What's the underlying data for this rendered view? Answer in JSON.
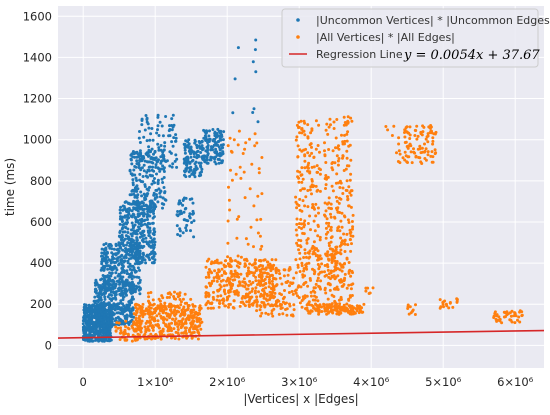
{
  "chart_data": {
    "type": "scatter",
    "title": "",
    "xlabel": "|Vertices| x |Edges|",
    "ylabel": "time (ms)",
    "xlim": [
      -350000,
      6400000
    ],
    "ylim": [
      -110,
      1650
    ],
    "x_ticks": [
      0,
      1000000,
      2000000,
      3000000,
      4000000,
      5000000,
      6000000
    ],
    "x_tick_labels": [
      "0",
      "1×10⁶",
      "2×10⁶",
      "3×10⁶",
      "4×10⁶",
      "5×10⁶",
      "6×10⁶"
    ],
    "y_ticks": [
      0,
      200,
      400,
      600,
      800,
      1000,
      1200,
      1400,
      1600
    ],
    "y_tick_labels": [
      "0",
      "200",
      "400",
      "600",
      "800",
      "1000",
      "1200",
      "1400",
      "1600"
    ],
    "grid": true,
    "legend_position": "top-right",
    "series": [
      {
        "name": "|Uncommon Vertices| * |Uncommon Edges|",
        "color": "#1f77b4",
        "clusters": [
          {
            "x": [
              0,
              400000
            ],
            "y": [
              20,
              200
            ],
            "n": 520
          },
          {
            "x": [
              150000,
              700000
            ],
            "y": [
              100,
              320
            ],
            "n": 360
          },
          {
            "x": [
              250000,
              800000
            ],
            "y": [
              250,
              500
            ],
            "n": 300
          },
          {
            "x": [
              500000,
              1000000
            ],
            "y": [
              400,
              700
            ],
            "n": 320
          },
          {
            "x": [
              650000,
              1150000
            ],
            "y": [
              650,
              950
            ],
            "n": 220
          },
          {
            "x": [
              750000,
              1300000
            ],
            "y": [
              850,
              1120
            ],
            "n": 90
          },
          {
            "x": [
              1300000,
              1550000
            ],
            "y": [
              520,
              720
            ],
            "n": 45
          },
          {
            "x": [
              1400000,
              1650000
            ],
            "y": [
              820,
              1000
            ],
            "n": 110
          },
          {
            "x": [
              1650000,
              1950000
            ],
            "y": [
              880,
              1050
            ],
            "n": 130
          },
          {
            "x": [
              2000000,
              2450000
            ],
            "y": [
              1060,
              1580
            ],
            "n": 10
          }
        ]
      },
      {
        "name": "|All Vertices| * |All Edges|",
        "color": "#ff7f0e",
        "clusters": [
          {
            "x": [
              450000,
              800000
            ],
            "y": [
              20,
              120
            ],
            "n": 45
          },
          {
            "x": [
              700000,
              1650000
            ],
            "y": [
              30,
              200
            ],
            "n": 380
          },
          {
            "x": [
              900000,
              1500000
            ],
            "y": [
              150,
              260
            ],
            "n": 60
          },
          {
            "x": [
              1700000,
              2700000
            ],
            "y": [
              180,
              420
            ],
            "n": 330
          },
          {
            "x": [
              2000000,
              2500000
            ],
            "y": [
              250,
              1050
            ],
            "n": 70
          },
          {
            "x": [
              2400000,
              2950000
            ],
            "y": [
              140,
              380
            ],
            "n": 110
          },
          {
            "x": [
              2950000,
              3300000
            ],
            "y": [
              150,
              1100
            ],
            "n": 230
          },
          {
            "x": [
              3350000,
              3750000
            ],
            "y": [
              150,
              1120
            ],
            "n": 280
          },
          {
            "x": [
              3100000,
              3900000
            ],
            "y": [
              150,
              200
            ],
            "n": 120
          },
          {
            "x": [
              3200000,
              3600000
            ],
            "y": [
              250,
              500
            ],
            "n": 60
          },
          {
            "x": [
              3900000,
              4050000
            ],
            "y": [
              230,
              280
            ],
            "n": 6
          },
          {
            "x": [
              4350000,
              4900000
            ],
            "y": [
              880,
              1070
            ],
            "n": 100
          },
          {
            "x": [
              4150000,
              4350000
            ],
            "y": [
              1020,
              1070
            ],
            "n": 4
          },
          {
            "x": [
              4950000,
              5200000
            ],
            "y": [
              180,
              240
            ],
            "n": 18
          },
          {
            "x": [
              4500000,
              4650000
            ],
            "y": [
              150,
              200
            ],
            "n": 10
          },
          {
            "x": [
              5700000,
              6100000
            ],
            "y": [
              110,
              170
            ],
            "n": 40
          }
        ]
      }
    ],
    "regression": {
      "name": "Regression Line",
      "color": "#d62728",
      "slope": 0.0054,
      "intercept": 37.67,
      "equation": "y = 0.0054x + 37.67"
    }
  }
}
